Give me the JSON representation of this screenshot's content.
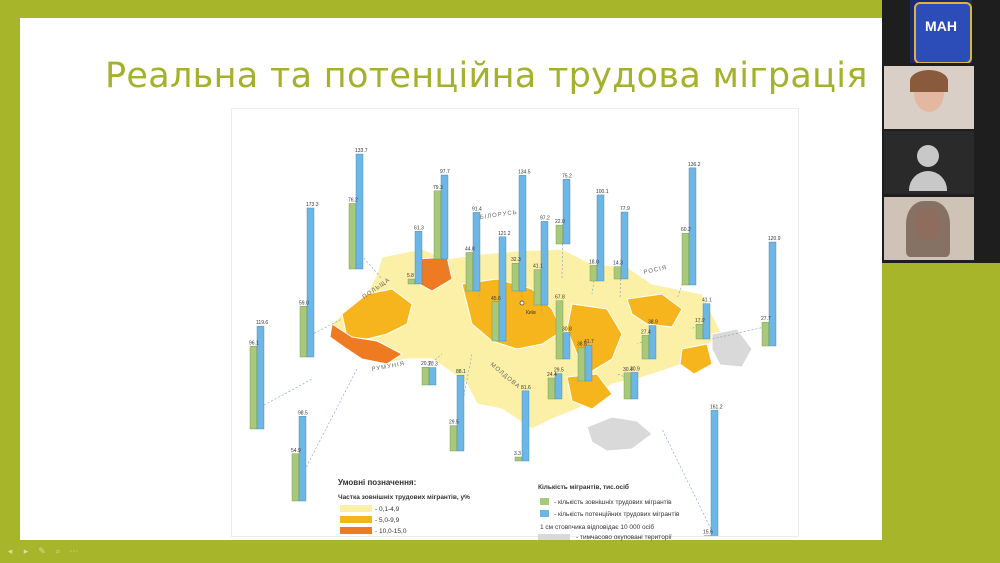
{
  "slide": {
    "title": "Реальна та потенційна трудова міграція"
  },
  "map": {
    "countries": {
      "belarus": "БІЛОРУСЬ",
      "russia": "РОСІЯ",
      "poland": "ПОЛЬЩА",
      "romania": "РУМУНІЯ",
      "moldova": "МОЛДОВА"
    },
    "capital_label": "Київ",
    "legend": {
      "title": "Умовні позначення:",
      "share_title": "Частка зовнішніх трудових мігрантів, у%",
      "share_ranges": [
        "- 0,1-4,9",
        "- 5,0-9,9",
        "- 10,0-15,0"
      ],
      "share_colors": [
        "#fbf0a6",
        "#f7b51d",
        "#ee7a21"
      ],
      "count_title": "Кількість мігрантів, тис.осіб",
      "count_items": [
        "- кількість зовнішніх трудових мігрантів",
        "- кількість потенційних трудових мігрантів"
      ],
      "count_colors": [
        "#a9c97a",
        "#6cb7e6"
      ],
      "scale_note": "1 см стовпчика відповідає 10 000 осіб",
      "occupied_label": "- тимчасово окуповані території",
      "occupied_color": "#d9d9d9"
    },
    "bars": [
      {
        "green": "96.1",
        "blue": "119.6"
      },
      {
        "green": "59.0",
        "blue": "173.3"
      },
      {
        "green": "54.9",
        "blue": "98.5"
      },
      {
        "green": "76.2",
        "blue": "133.7"
      },
      {
        "green": "5.8",
        "blue": "61.3"
      },
      {
        "green": "79.3",
        "blue": "97.7"
      },
      {
        "green": "20.7",
        "blue": "20.3"
      },
      {
        "green": "29.5",
        "blue": "88.1"
      },
      {
        "green": "44.8",
        "blue": "91.4"
      },
      {
        "green": "45.6",
        "blue": "121.2"
      },
      {
        "green": "32.3",
        "blue": "134.5"
      },
      {
        "green": "41.1",
        "blue": "97.2"
      },
      {
        "green": "24.4",
        "blue": "29.5"
      },
      {
        "green": "3.3",
        "blue": "81.6"
      },
      {
        "green": "22.0",
        "blue": "75.2"
      },
      {
        "green": "67.8",
        "blue": "30.8"
      },
      {
        "green": "38.8",
        "blue": "41.7"
      },
      {
        "green": "18.0",
        "blue": "100.1"
      },
      {
        "green": "14.3",
        "blue": "77.9"
      },
      {
        "green": "30.4",
        "blue": "30.9"
      },
      {
        "green": "27.4",
        "blue": "38.9"
      },
      {
        "green": "60.2",
        "blue": "136.2"
      },
      {
        "green": "17.2",
        "blue": "41.1"
      },
      {
        "green": "27.7",
        "blue": "120.9"
      },
      {
        "green": "15.6",
        "blue": "161.2"
      }
    ]
  },
  "video_panel": {
    "logo_text": "МАН"
  },
  "toolbar": {
    "icons": [
      "arrow-left-icon",
      "arrow-right-icon",
      "pen-icon",
      "zoom-icon",
      "more-icon"
    ],
    "symbols": [
      "◂",
      "▸",
      "✎",
      "⌕",
      "⋯"
    ]
  }
}
